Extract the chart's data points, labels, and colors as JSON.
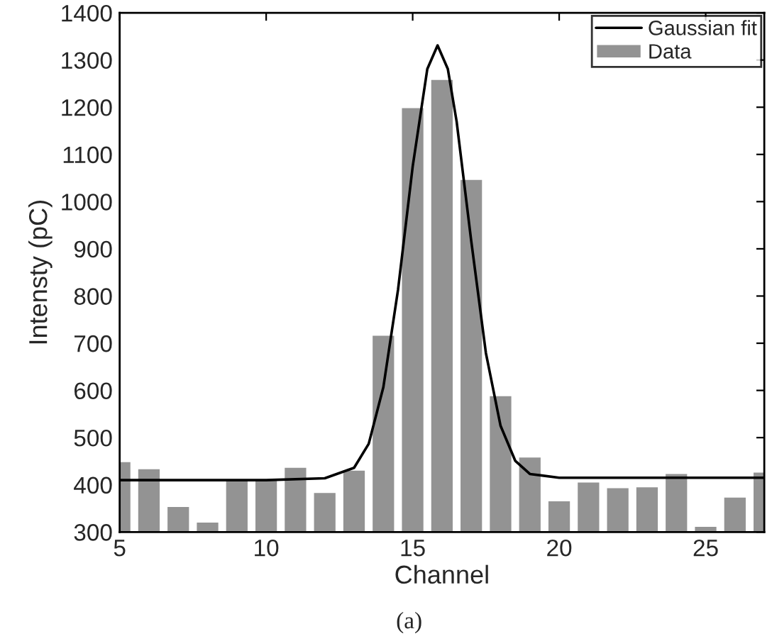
{
  "chart_data": {
    "type": "bar",
    "xlabel": "Channel",
    "ylabel": "Intensty (pC)",
    "x": [
      5,
      6,
      7,
      8,
      9,
      10,
      11,
      12,
      13,
      14,
      15,
      16,
      17,
      18,
      19,
      20,
      21,
      22,
      23,
      24,
      25,
      26,
      27
    ],
    "series": [
      {
        "name": "Gaussian fit",
        "type": "line",
        "color": "#000000",
        "x": [
          5,
          10,
          12,
          13,
          13.5,
          14,
          14.5,
          15,
          15.5,
          15.85,
          16.2,
          16.5,
          17,
          17.5,
          18,
          18.5,
          19,
          20,
          22,
          27
        ],
        "values": [
          410,
          410,
          414,
          436,
          487,
          607,
          813,
          1074,
          1281,
          1331,
          1281,
          1170,
          916,
          679,
          525,
          451,
          423,
          415,
          415,
          415
        ]
      },
      {
        "name": "Data",
        "color": "#939393",
        "values": [
          450,
          435,
          355,
          322,
          412,
          412,
          438,
          385,
          432,
          718,
          1200,
          1260,
          1048,
          590,
          460,
          367,
          407,
          395,
          397,
          425,
          313,
          375,
          428
        ]
      }
    ],
    "xlim": [
      5,
      27
    ],
    "xticks": [
      5,
      10,
      15,
      20,
      25
    ],
    "ylim": [
      300,
      1400
    ],
    "yticks": [
      300,
      400,
      500,
      600,
      700,
      800,
      900,
      1000,
      1100,
      1200,
      1300,
      1400
    ],
    "grid": false,
    "legend": "top right",
    "annotations": [
      "(a)"
    ]
  }
}
